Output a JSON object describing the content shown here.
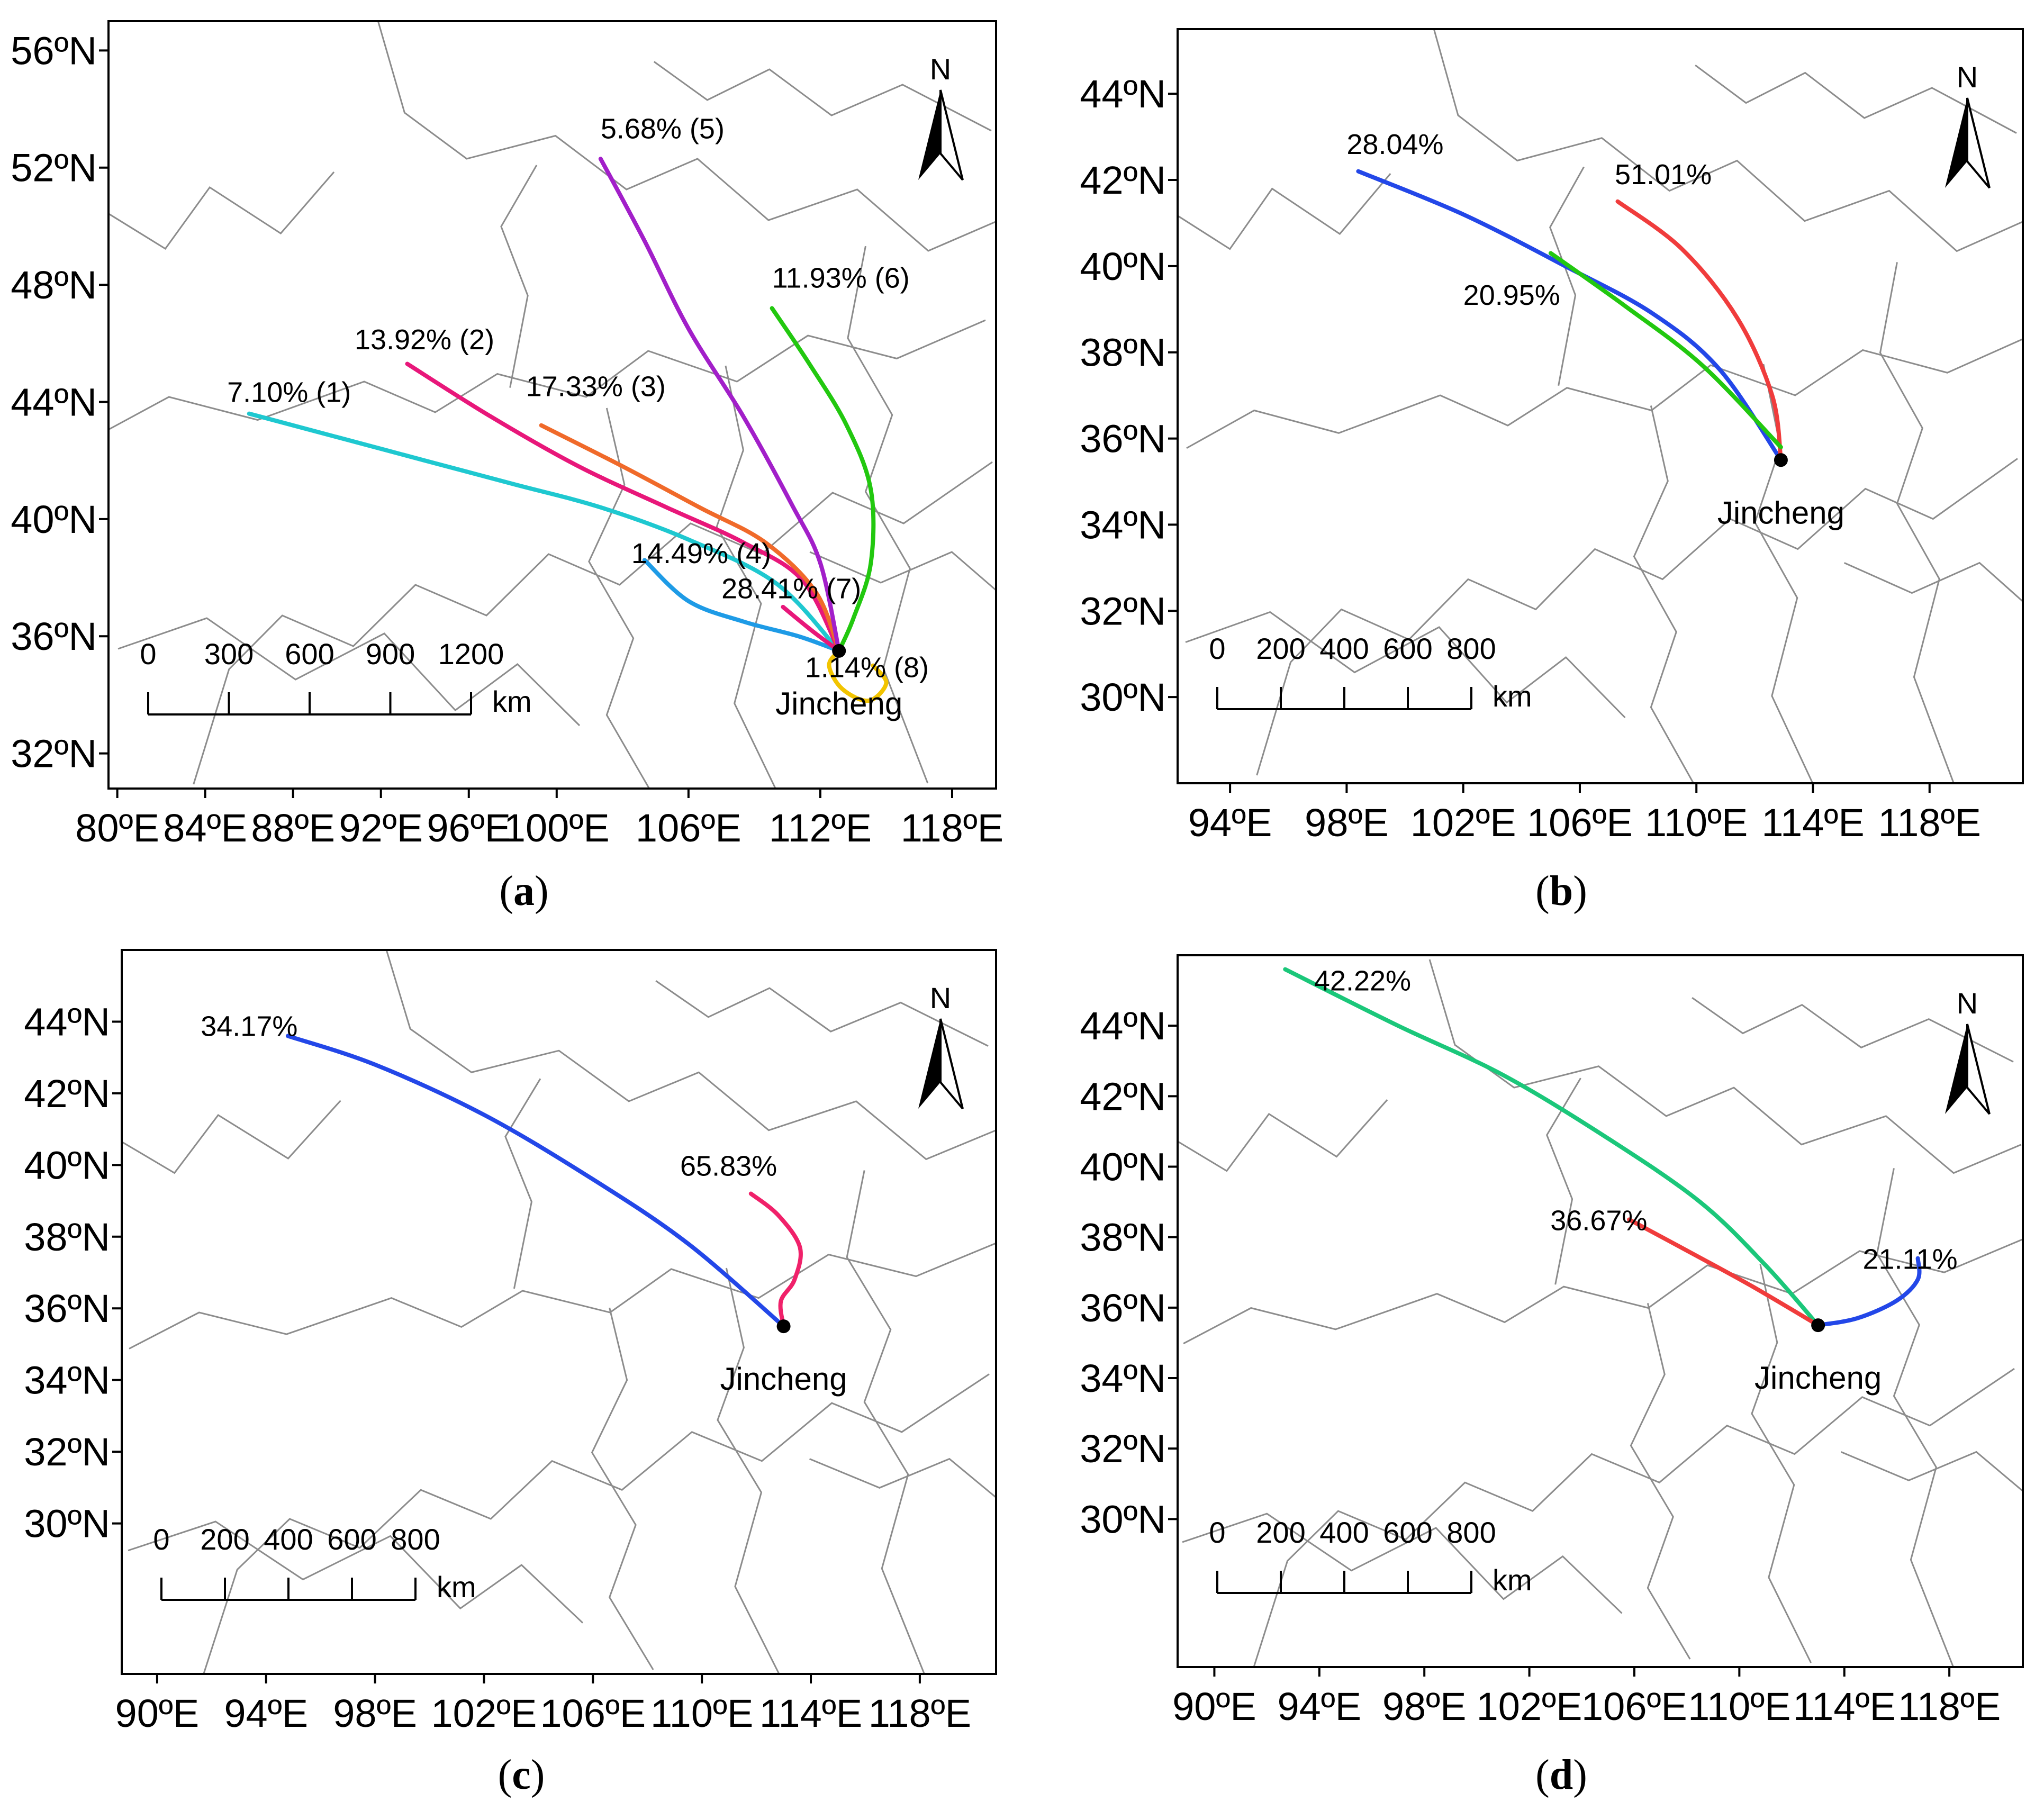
{
  "colors": {
    "frame": "#000000",
    "border": "#8c8c8c",
    "cyan": "#1fc8d0",
    "magenta": "#e8177a",
    "orange": "#f06a2a",
    "skyblue": "#1e9be6",
    "purple": "#a21fc9",
    "green": "#22c80f",
    "yellow": "#f2c400",
    "red": "#f03c3c",
    "blue": "#2347e8",
    "seagreen": "#1bc77a",
    "pink": "#f0216a"
  },
  "panels": [
    {
      "id": "a",
      "caption_label": "a",
      "north_label": "N",
      "city_label": "Jincheng",
      "city": {
        "lon": 112.85,
        "lat": 35.5
      },
      "lon_range": [
        79.6,
        120.0
      ],
      "lat_range": [
        30.8,
        57.0
      ],
      "x_ticks": [
        {
          "lon": 80,
          "label": "80ºE"
        },
        {
          "lon": 84,
          "label": "84ºE"
        },
        {
          "lon": 88,
          "label": "88ºE"
        },
        {
          "lon": 92,
          "label": "92ºE"
        },
        {
          "lon": 96,
          "label": "96ºE"
        },
        {
          "lon": 100,
          "label": "100ºE"
        },
        {
          "lon": 106,
          "label": "106ºE"
        },
        {
          "lon": 112,
          "label": "112ºE"
        },
        {
          "lon": 118,
          "label": "118ºE"
        }
      ],
      "y_ticks": [
        {
          "lat": 32,
          "label": "32ºN"
        },
        {
          "lat": 36,
          "label": "36ºN"
        },
        {
          "lat": 40,
          "label": "40ºN"
        },
        {
          "lat": 44,
          "label": "44ºN"
        },
        {
          "lat": 48,
          "label": "48ºN"
        },
        {
          "lat": 52,
          "label": "52ºN"
        },
        {
          "lat": 56,
          "label": "56ºN"
        }
      ],
      "scale_bar": {
        "labels": [
          "0",
          "300",
          "600",
          "900",
          "1200"
        ],
        "unit": "km"
      },
      "trajectories": [
        {
          "label": "7.10% (1)",
          "color": "#1fc8d0",
          "label_at": [
            85.0,
            44.0
          ],
          "points": [
            [
              86.0,
              43.6
            ],
            [
              90.0,
              42.8
            ],
            [
              94.0,
              42.0
            ],
            [
              98.0,
              41.2
            ],
            [
              102.0,
              40.4
            ],
            [
              106.0,
              39.3
            ],
            [
              110.0,
              37.8
            ],
            [
              112.85,
              35.5
            ]
          ]
        },
        {
          "label": "13.92% (2)",
          "color": "#e8177a",
          "label_at": [
            90.8,
            45.8
          ],
          "points": [
            [
              93.2,
              45.3
            ],
            [
              97.0,
              43.5
            ],
            [
              101.0,
              41.8
            ],
            [
              105.0,
              40.4
            ],
            [
              108.5,
              39.2
            ],
            [
              111.2,
              37.9
            ],
            [
              112.85,
              35.5
            ]
          ]
        },
        {
          "label": "17.33% (3)",
          "color": "#f06a2a",
          "label_at": [
            98.6,
            44.2
          ],
          "points": [
            [
              99.3,
              43.2
            ],
            [
              103.0,
              41.8
            ],
            [
              106.5,
              40.4
            ],
            [
              109.5,
              39.2
            ],
            [
              111.8,
              37.5
            ],
            [
              112.85,
              35.5
            ]
          ]
        },
        {
          "label": "14.49% (4)",
          "color": "#1e9be6",
          "label_at": [
            103.4,
            38.5
          ],
          "points": [
            [
              104.0,
              38.6
            ],
            [
              106.0,
              37.2
            ],
            [
              108.5,
              36.5
            ],
            [
              111.0,
              36.0
            ],
            [
              112.85,
              35.5
            ]
          ]
        },
        {
          "label": "5.68% (5)",
          "color": "#a21fc9",
          "label_at": [
            102.0,
            53.0
          ],
          "points": [
            [
              102.0,
              52.3
            ],
            [
              104.0,
              49.5
            ],
            [
              106.0,
              46.5
            ],
            [
              108.5,
              43.5
            ],
            [
              110.7,
              40.5
            ],
            [
              112.0,
              38.5
            ],
            [
              112.85,
              35.5
            ]
          ]
        },
        {
          "label": "11.93% (6)",
          "color": "#22c80f",
          "label_at": [
            109.8,
            47.9
          ],
          "points": [
            [
              109.8,
              47.2
            ],
            [
              111.5,
              45.3
            ],
            [
              113.2,
              43.2
            ],
            [
              114.3,
              41.0
            ],
            [
              114.3,
              38.5
            ],
            [
              113.5,
              36.6
            ],
            [
              112.85,
              35.5
            ]
          ]
        },
        {
          "label": "28.41% (7)",
          "color": "#e8177a",
          "label_at": [
            107.5,
            37.3
          ],
          "points": [
            [
              110.3,
              37.0
            ],
            [
              111.6,
              36.2
            ],
            [
              112.85,
              35.5
            ]
          ]
        },
        {
          "label": "1.14% (8)",
          "color": "#f2c400",
          "label_at": [
            111.3,
            34.6
          ],
          "points": [
            [
              112.85,
              35.5
            ],
            [
              112.4,
              35.0
            ],
            [
              113.0,
              34.2
            ],
            [
              114.2,
              33.8
            ],
            [
              115.0,
              34.4
            ],
            [
              114.4,
              35.0
            ]
          ]
        }
      ]
    },
    {
      "id": "b",
      "caption_label": "b",
      "north_label": "N",
      "city_label": "Jincheng",
      "city": {
        "lon": 112.9,
        "lat": 35.5
      },
      "lon_range": [
        92.2,
        121.2
      ],
      "lat_range": [
        28.0,
        45.5
      ],
      "x_ticks": [
        {
          "lon": 94,
          "label": "94ºE"
        },
        {
          "lon": 98,
          "label": "98ºE"
        },
        {
          "lon": 102,
          "label": "102ºE"
        },
        {
          "lon": 106,
          "label": "106ºE"
        },
        {
          "lon": 110,
          "label": "110ºE"
        },
        {
          "lon": 114,
          "label": "114ºE"
        },
        {
          "lon": 118,
          "label": "118ºE"
        }
      ],
      "y_ticks": [
        {
          "lat": 30,
          "label": "30ºN"
        },
        {
          "lat": 32,
          "label": "32ºN"
        },
        {
          "lat": 34,
          "label": "34ºN"
        },
        {
          "lat": 36,
          "label": "36ºN"
        },
        {
          "lat": 38,
          "label": "38ºN"
        },
        {
          "lat": 40,
          "label": "40ºN"
        },
        {
          "lat": 42,
          "label": "42ºN"
        },
        {
          "lat": 44,
          "label": "44ºN"
        }
      ],
      "scale_bar": {
        "labels": [
          "0",
          "200",
          "400",
          "600",
          "800"
        ],
        "unit": "km"
      },
      "trajectories": [
        {
          "label": "28.04%",
          "color": "#2347e8",
          "label_at": [
            98.0,
            42.6
          ],
          "points": [
            [
              98.4,
              42.2
            ],
            [
              102.0,
              41.2
            ],
            [
              105.5,
              40.0
            ],
            [
              108.5,
              38.9
            ],
            [
              110.8,
              37.6
            ],
            [
              112.9,
              35.5
            ]
          ]
        },
        {
          "label": "51.01%",
          "color": "#f03c3c",
          "label_at": [
            107.2,
            41.9
          ],
          "points": [
            [
              107.3,
              41.5
            ],
            [
              109.5,
              40.4
            ],
            [
              111.4,
              38.8
            ],
            [
              112.6,
              37.0
            ],
            [
              112.9,
              35.5
            ]
          ]
        },
        {
          "label": "20.95%",
          "color": "#22c80f",
          "label_at": [
            102.0,
            39.1
          ],
          "points": [
            [
              105.0,
              40.3
            ],
            [
              107.5,
              39.1
            ],
            [
              110.2,
              37.7
            ],
            [
              112.9,
              35.8
            ]
          ]
        }
      ]
    },
    {
      "id": "c",
      "caption_label": "c",
      "north_label": "N",
      "city_label": "Jincheng",
      "city": {
        "lon": 113.0,
        "lat": 35.5
      },
      "lon_range": [
        88.7,
        120.8
      ],
      "lat_range": [
        25.8,
        46.0
      ],
      "x_ticks": [
        {
          "lon": 90,
          "label": "90ºE"
        },
        {
          "lon": 94,
          "label": "94ºE"
        },
        {
          "lon": 98,
          "label": "98ºE"
        },
        {
          "lon": 102,
          "label": "102ºE"
        },
        {
          "lon": 106,
          "label": "106ºE"
        },
        {
          "lon": 110,
          "label": "110ºE"
        },
        {
          "lon": 114,
          "label": "114ºE"
        },
        {
          "lon": 118,
          "label": "118ºE"
        }
      ],
      "y_ticks": [
        {
          "lat": 30,
          "label": "30ºN"
        },
        {
          "lat": 32,
          "label": "32ºN"
        },
        {
          "lat": 34,
          "label": "34ºN"
        },
        {
          "lat": 36,
          "label": "36ºN"
        },
        {
          "lat": 38,
          "label": "38ºN"
        },
        {
          "lat": 40,
          "label": "40ºN"
        },
        {
          "lat": 42,
          "label": "42ºN"
        },
        {
          "lat": 44,
          "label": "44ºN"
        }
      ],
      "scale_bar": {
        "labels": [
          "0",
          "200",
          "400",
          "600",
          "800"
        ],
        "unit": "km"
      },
      "trajectories": [
        {
          "label": "34.17%",
          "color": "#2347e8",
          "label_at": [
            91.6,
            43.6
          ],
          "points": [
            [
              94.8,
              43.6
            ],
            [
              98.0,
              42.8
            ],
            [
              102.0,
              41.4
            ],
            [
              106.0,
              39.6
            ],
            [
              109.5,
              37.8
            ],
            [
              113.0,
              35.5
            ]
          ]
        },
        {
          "label": "65.83%",
          "color": "#f0216a",
          "label_at": [
            109.2,
            39.7
          ],
          "points": [
            [
              111.8,
              39.2
            ],
            [
              112.8,
              38.6
            ],
            [
              113.6,
              37.7
            ],
            [
              113.4,
              36.8
            ],
            [
              112.9,
              36.2
            ],
            [
              113.0,
              35.5
            ]
          ]
        }
      ]
    },
    {
      "id": "d",
      "caption_label": "d",
      "north_label": "N",
      "city_label": "Jincheng",
      "city": {
        "lon": 113.0,
        "lat": 35.5
      },
      "lon_range": [
        88.6,
        120.8
      ],
      "lat_range": [
        25.8,
        46.0
      ],
      "x_ticks": [
        {
          "lon": 90,
          "label": "90ºE"
        },
        {
          "lon": 94,
          "label": "94ºE"
        },
        {
          "lon": 98,
          "label": "98ºE"
        },
        {
          "lon": 102,
          "label": "102ºE"
        },
        {
          "lon": 106,
          "label": "106ºE"
        },
        {
          "lon": 110,
          "label": "110ºE"
        },
        {
          "lon": 114,
          "label": "114ºE"
        },
        {
          "lon": 118,
          "label": "118ºE"
        }
      ],
      "y_ticks": [
        {
          "lat": 30,
          "label": "30ºN"
        },
        {
          "lat": 32,
          "label": "32ºN"
        },
        {
          "lat": 34,
          "label": "34ºN"
        },
        {
          "lat": 36,
          "label": "36ºN"
        },
        {
          "lat": 38,
          "label": "38ºN"
        },
        {
          "lat": 40,
          "label": "40ºN"
        },
        {
          "lat": 42,
          "label": "42ºN"
        },
        {
          "lat": 44,
          "label": "44ºN"
        }
      ],
      "scale_bar": {
        "labels": [
          "0",
          "200",
          "400",
          "600",
          "800"
        ],
        "unit": "km"
      },
      "trajectories": [
        {
          "label": "42.22%",
          "color": "#1bc77a",
          "label_at": [
            93.8,
            45.0
          ],
          "points": [
            [
              92.7,
              45.6
            ],
            [
              97.0,
              44.0
            ],
            [
              101.0,
              42.6
            ],
            [
              105.0,
              40.8
            ],
            [
              108.5,
              39.0
            ],
            [
              111.0,
              37.2
            ],
            [
              113.0,
              35.5
            ]
          ]
        },
        {
          "label": "36.67%",
          "color": "#f03c3c",
          "label_at": [
            102.8,
            38.2
          ],
          "points": [
            [
              105.8,
              38.5
            ],
            [
              108.3,
              37.5
            ],
            [
              110.5,
              36.6
            ],
            [
              113.0,
              35.5
            ]
          ]
        },
        {
          "label": "21.11%",
          "color": "#2347e8",
          "label_at": [
            114.7,
            37.1
          ],
          "points": [
            [
              113.0,
              35.5
            ],
            [
              114.5,
              35.7
            ],
            [
              116.0,
              36.2
            ],
            [
              116.8,
              36.8
            ],
            [
              116.8,
              37.4
            ]
          ]
        }
      ]
    }
  ]
}
